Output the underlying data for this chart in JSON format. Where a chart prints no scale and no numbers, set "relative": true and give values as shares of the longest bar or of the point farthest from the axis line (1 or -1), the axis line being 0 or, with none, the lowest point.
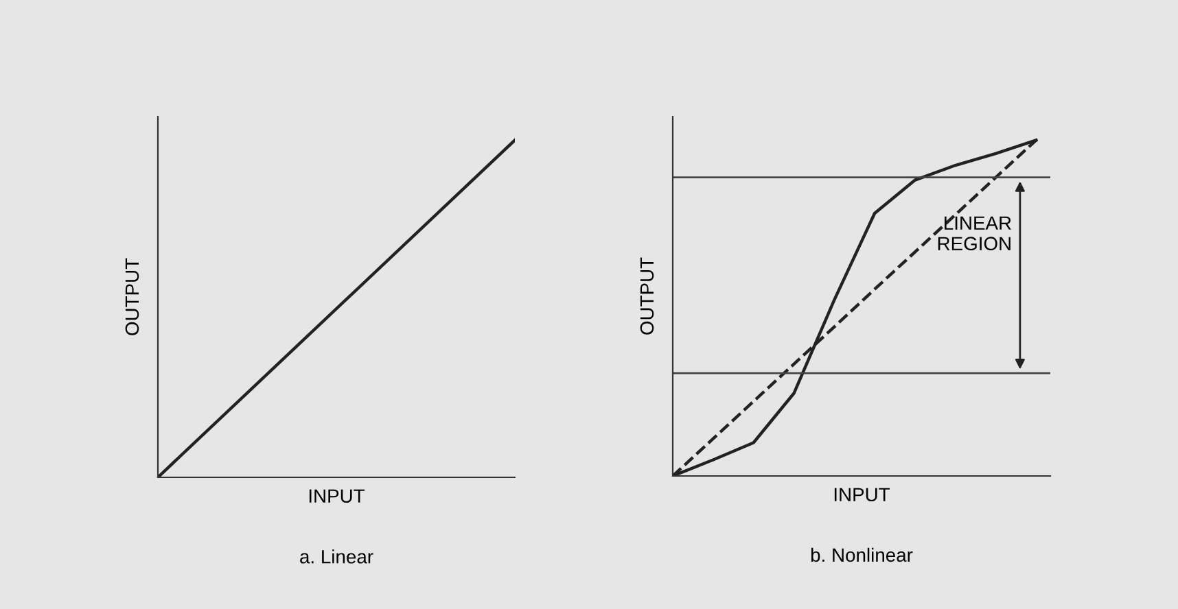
{
  "chart_data": [
    {
      "type": "line",
      "relative": true,
      "xlabel": "INPUT",
      "ylabel": "OUTPUT",
      "categories": [
        null,
        null
      ],
      "series": [
        {
          "color": "#222222",
          "values": [
            0,
            1
          ]
        }
      ],
      "annotations": [
        "a. Linear"
      ]
    },
    {
      "type": "line",
      "relative": true,
      "xlabel": "INPUT",
      "ylabel": "OUTPUT",
      "categories": [
        null,
        null,
        null,
        null,
        null,
        null,
        null,
        null,
        null,
        null
      ],
      "series": [
        {
          "color": "#222222",
          "values": [
            0,
            0.048,
            0.099,
            0.246,
            0.524,
            0.782,
            0.881,
            0.925,
            0.96,
            1.0
          ],
          "line_style": "solid"
        },
        {
          "color": "#222222",
          "values": [
            0,
            0.111,
            0.222,
            0.333,
            0.444,
            0.556,
            0.667,
            0.778,
            0.889,
            1.0
          ],
          "line_style": "dashed"
        }
      ],
      "ref_lines": [
        {
          "axis": "y",
          "value": 0.889,
          "color": "#444444"
        },
        {
          "axis": "y",
          "value": 0.306,
          "color": "#444444"
        }
      ],
      "annotations": [
        {
          "text": "LINEAR\nREGION"
        },
        "b. Nonlinear"
      ]
    }
  ]
}
